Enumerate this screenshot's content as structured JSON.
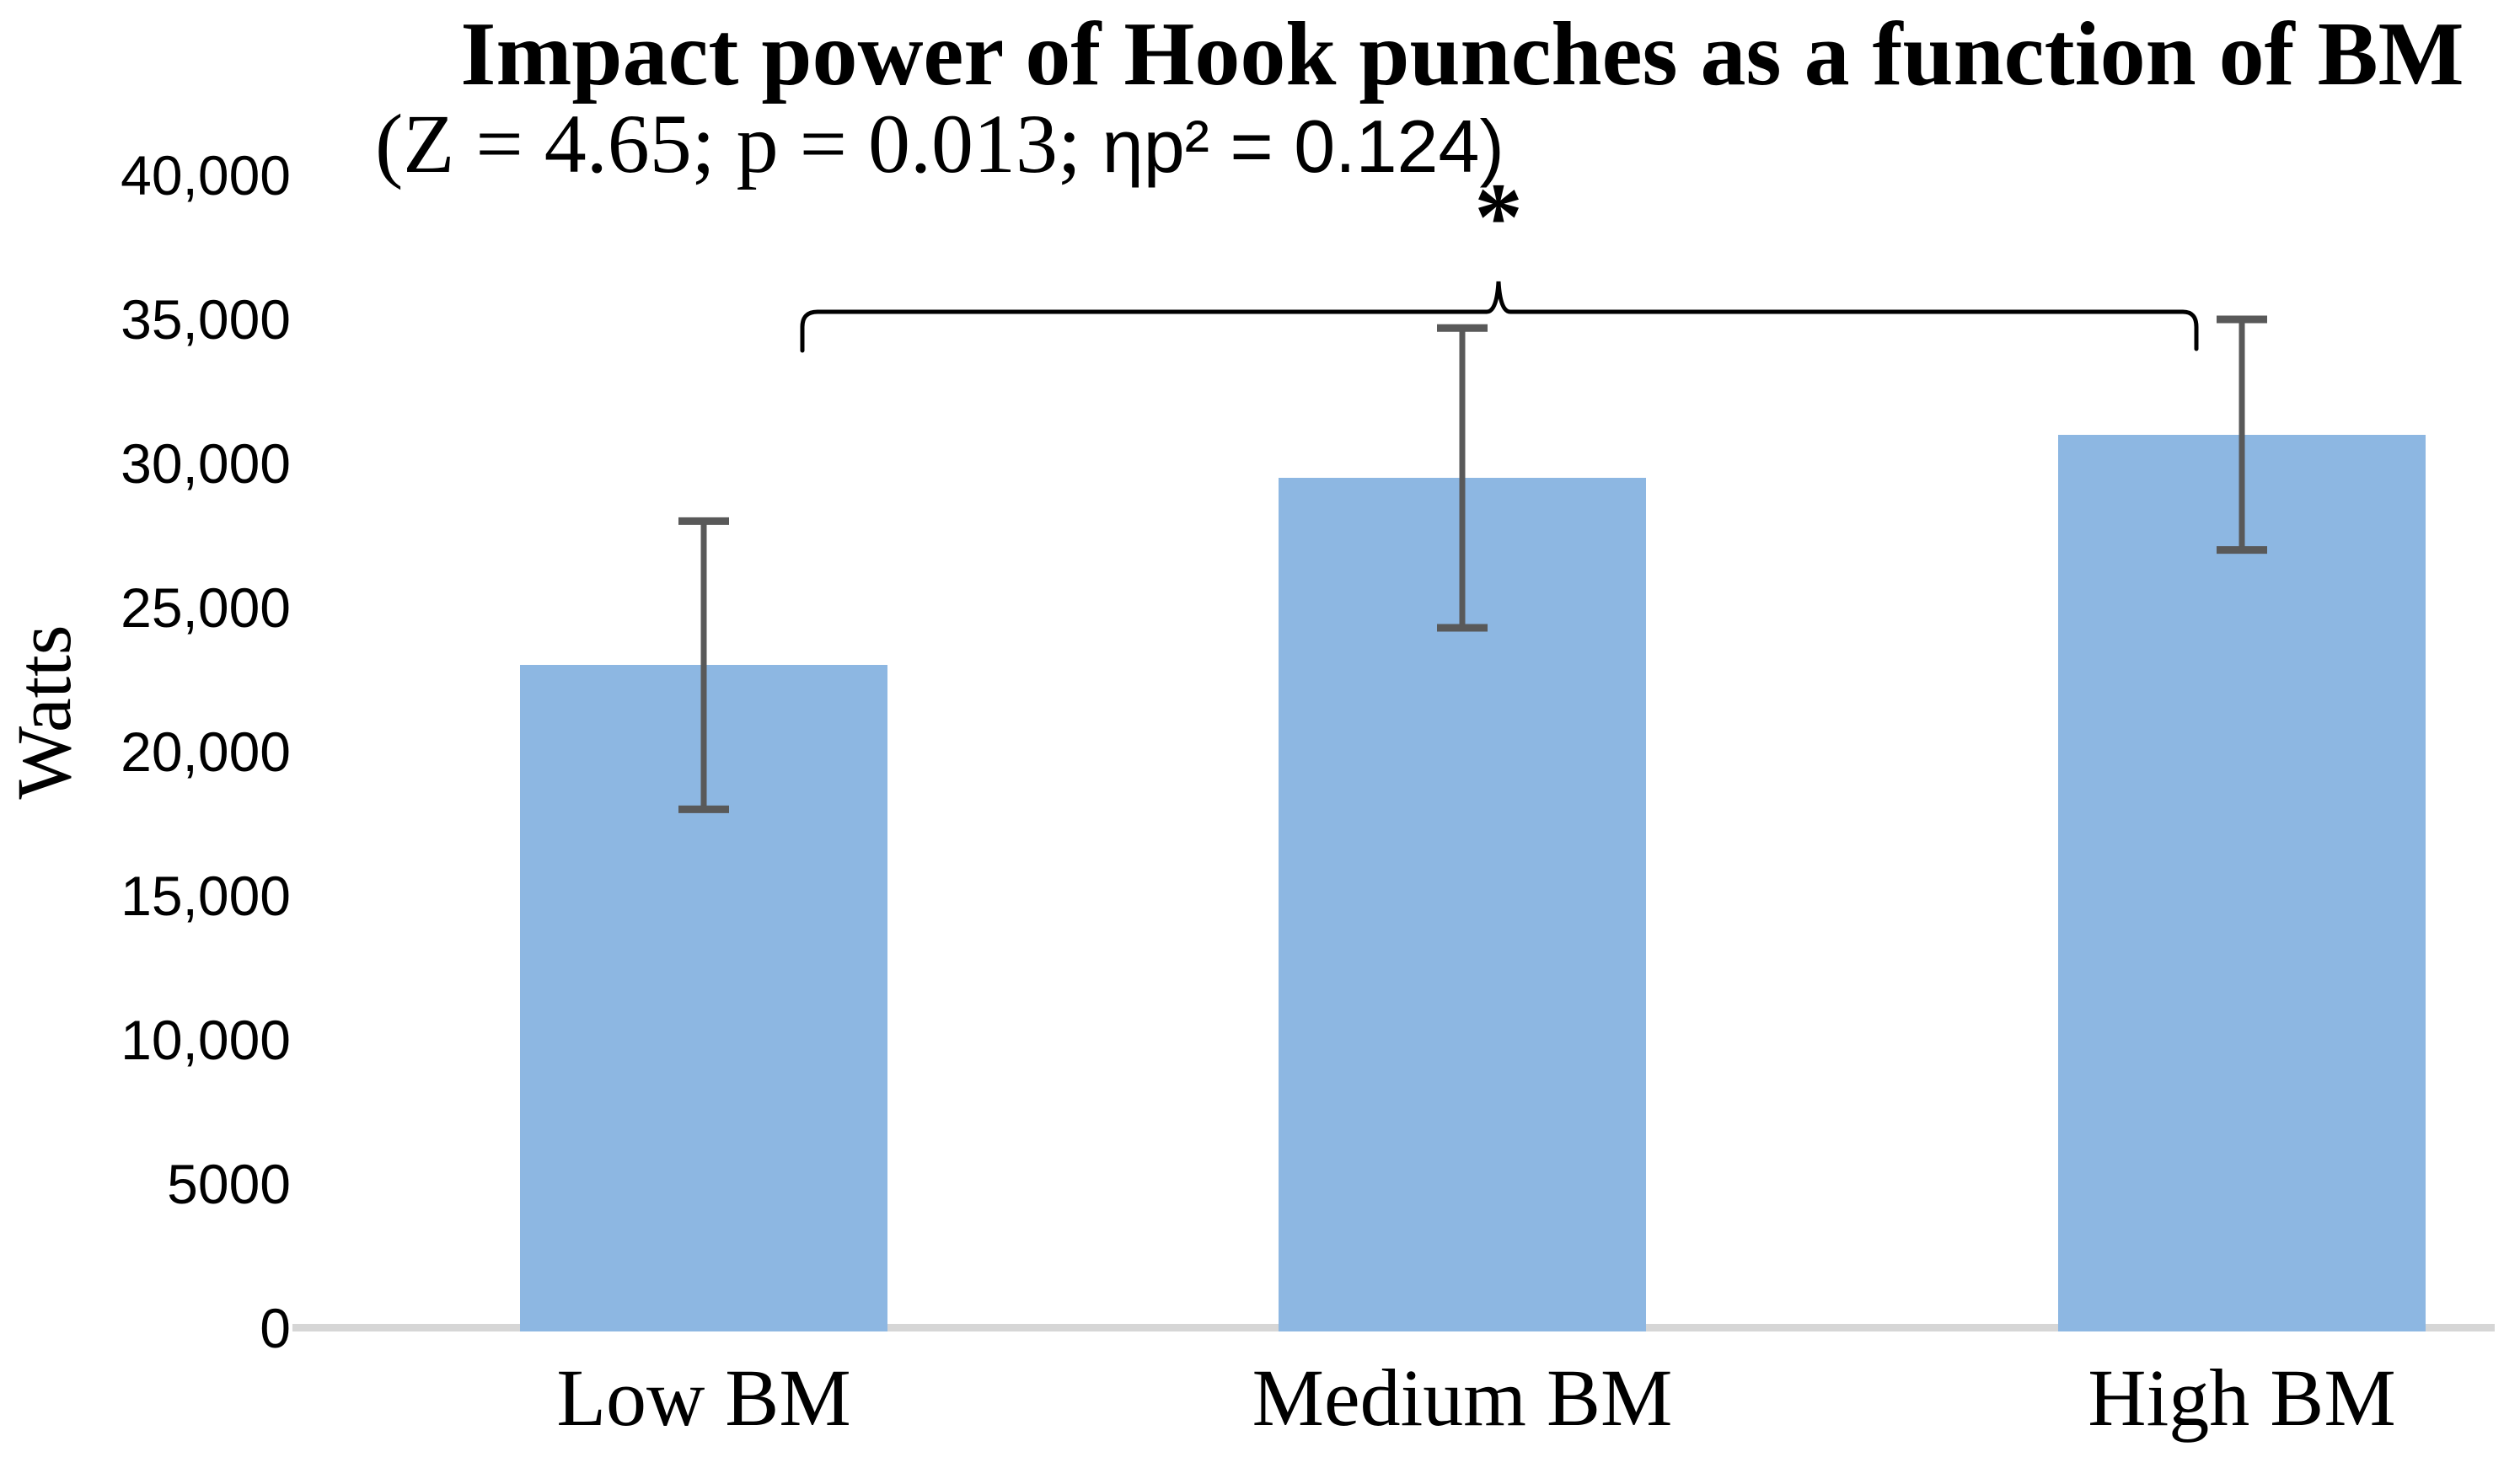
{
  "chart_data": {
    "type": "bar",
    "title": "Impact power of Hook punches as a function of BM",
    "subtitle": "(Z = 4.65; p = 0.013; ηp² = 0.124)",
    "subtitle_serif": "(Z = 4.65; p = 0.013; ",
    "subtitle_sans": "ηp² = 0.124)",
    "ylabel": "Watts",
    "xlabel": "",
    "categories": [
      "Low BM",
      "Medium BM",
      "High BM"
    ],
    "values": [
      23000,
      29500,
      31000
    ],
    "error_upper": [
      28000,
      34700,
      35000
    ],
    "error_lower": [
      18000,
      24300,
      27000
    ],
    "ylim": [
      0,
      40000
    ],
    "ytick_step": 5000,
    "yticks": [
      {
        "value": 0,
        "label": "0"
      },
      {
        "value": 5000,
        "label": "5000"
      },
      {
        "value": 10000,
        "label": "10,000"
      },
      {
        "value": 15000,
        "label": "15,000"
      },
      {
        "value": 20000,
        "label": "20,000"
      },
      {
        "value": 25000,
        "label": "25,000"
      },
      {
        "value": 30000,
        "label": "30,000"
      },
      {
        "value": 35000,
        "label": "35,000"
      },
      {
        "value": 40000,
        "label": "40,000"
      }
    ],
    "grid": false,
    "legend": "none",
    "significance": {
      "label": "*",
      "from": "Low BM",
      "to": "High BM"
    },
    "colors": {
      "bar": "#8DB7E2",
      "error_bar": "#595959",
      "axis_line": "#D6D6D6",
      "bracket": "#000000",
      "text": "#000000"
    }
  }
}
